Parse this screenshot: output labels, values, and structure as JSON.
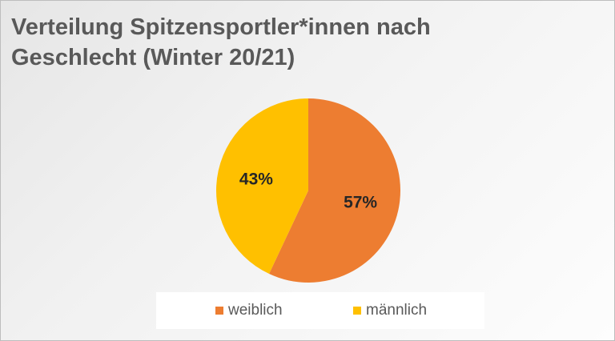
{
  "title_lines": [
    "Verteilung Spitzensportler*innen nach",
    "Geschlecht (Winter 20/21)"
  ],
  "chart_data": {
    "type": "pie",
    "title": "Verteilung Spitzensportler*innen nach Geschlecht (Winter 20/21)",
    "categories": [
      "weiblich",
      "männlich"
    ],
    "values": [
      57,
      43
    ],
    "labels": [
      "57%",
      "43%"
    ],
    "colors": [
      "#ED7D31",
      "#FFC000"
    ],
    "legend_position": "bottom"
  }
}
